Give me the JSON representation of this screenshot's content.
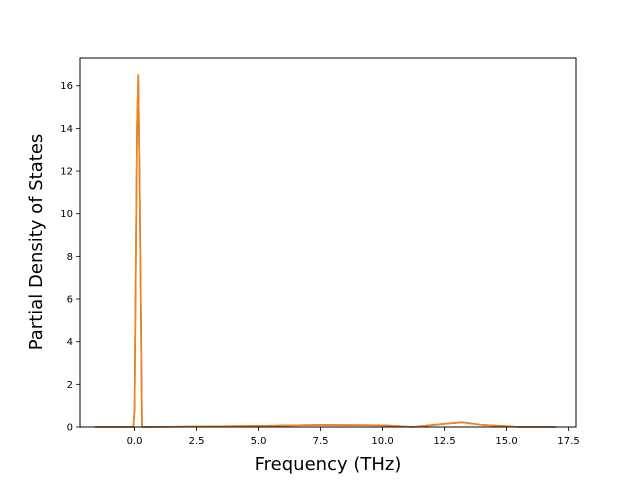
{
  "chart_data": {
    "type": "line",
    "title": "",
    "xlabel": "Frequency (THz)",
    "ylabel": "Partial Density of States",
    "xlim": [
      -2.2,
      17.8
    ],
    "ylim": [
      0,
      17.3
    ],
    "xticks": [
      0.0,
      2.5,
      5.0,
      7.5,
      10.0,
      12.5,
      15.0,
      17.5
    ],
    "xtick_labels": [
      "0.0",
      "2.5",
      "5.0",
      "7.5",
      "10.0",
      "12.5",
      "15.0",
      "17.5"
    ],
    "yticks": [
      0,
      2,
      4,
      6,
      8,
      10,
      12,
      14,
      16
    ],
    "ytick_labels": [
      "0",
      "2",
      "4",
      "6",
      "8",
      "10",
      "12",
      "14",
      "16"
    ],
    "grid": false,
    "series": [
      {
        "color": "#1f77b4",
        "x": [
          -1.6,
          -0.2,
          -0.05,
          0.0,
          0.1,
          0.15,
          0.2,
          0.3,
          2.5,
          5.0,
          7.5,
          10.0,
          10.5,
          11.2,
          12.5,
          13.2,
          14.0,
          15.0,
          15.5,
          17.0
        ],
        "y": [
          0.0,
          0.0,
          0.0,
          0.8,
          14.0,
          16.5,
          12.0,
          0.0,
          0.02,
          0.05,
          0.1,
          0.08,
          0.05,
          0.0,
          0.15,
          0.22,
          0.1,
          0.04,
          0.0,
          0.0
        ]
      },
      {
        "color": "#ff7f0e",
        "x": [
          -1.6,
          -0.2,
          -0.05,
          0.0,
          0.1,
          0.15,
          0.2,
          0.3,
          2.5,
          5.0,
          7.5,
          10.0,
          10.5,
          11.2,
          12.5,
          13.2,
          14.0,
          15.0,
          15.5,
          17.0
        ],
        "y": [
          0.0,
          0.0,
          0.0,
          0.8,
          14.0,
          16.5,
          12.0,
          0.0,
          0.02,
          0.05,
          0.1,
          0.08,
          0.05,
          0.0,
          0.15,
          0.22,
          0.1,
          0.04,
          0.0,
          0.0
        ]
      }
    ]
  }
}
